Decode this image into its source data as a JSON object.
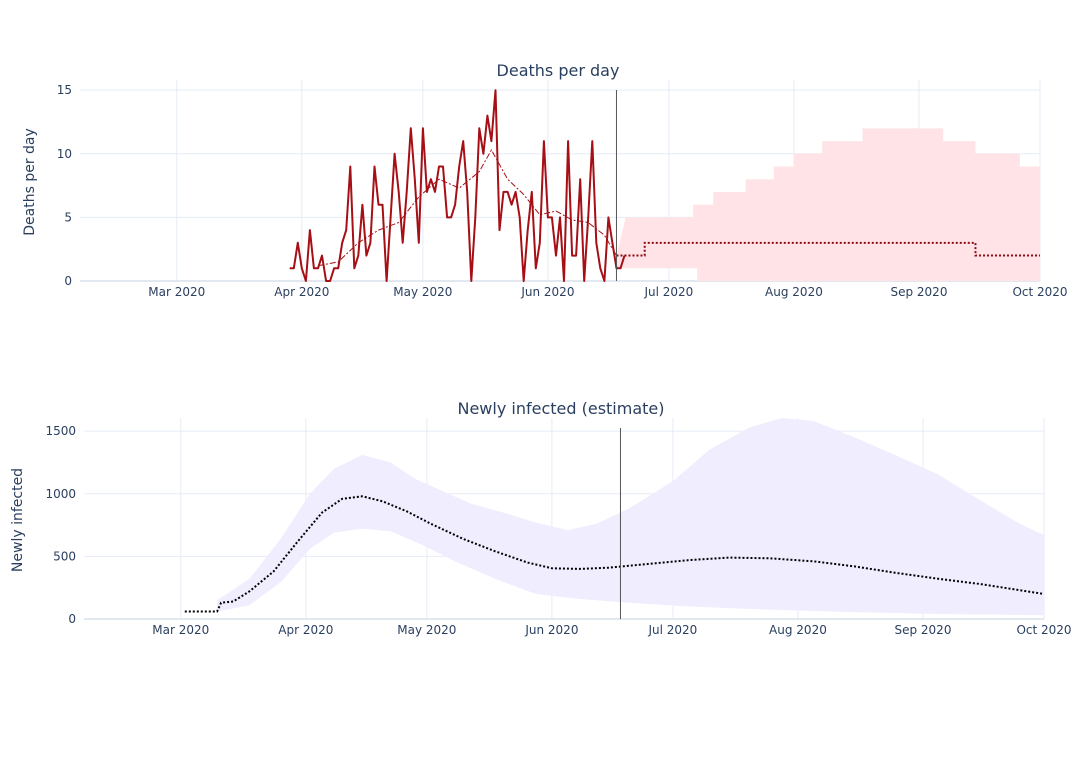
{
  "chart_data": [
    {
      "type": "line",
      "title": "Deaths per day",
      "ylabel": "Deaths per day",
      "xlabel": "",
      "x_range": [
        "2020-02-06",
        "2020-10-01"
      ],
      "ylim": [
        0,
        15.8
      ],
      "y_ticks": [
        0,
        5,
        10,
        15
      ],
      "x_ticks": [
        {
          "date": "2020-03-01",
          "label": "Mar 2020"
        },
        {
          "date": "2020-04-01",
          "label": "Apr 2020"
        },
        {
          "date": "2020-05-01",
          "label": "May 2020"
        },
        {
          "date": "2020-06-01",
          "label": "Jun 2020"
        },
        {
          "date": "2020-07-01",
          "label": "Jul 2020"
        },
        {
          "date": "2020-08-01",
          "label": "Aug 2020"
        },
        {
          "date": "2020-09-01",
          "label": "Sep 2020"
        },
        {
          "date": "2020-10-01",
          "label": "Oct 2020"
        }
      ],
      "vline_date": "2020-06-18",
      "grid": true,
      "colors": {
        "observed": "#a50f15",
        "band": "#ffe3e6",
        "grid": "#e5ecf6"
      },
      "observed": {
        "start_date": "2020-03-29",
        "values": [
          1,
          1,
          3,
          1,
          0,
          4,
          1,
          1,
          2,
          0,
          0,
          1,
          1,
          3,
          4,
          9,
          1,
          2,
          6,
          2,
          3,
          9,
          6,
          6,
          0,
          5,
          10,
          7,
          3,
          7,
          12,
          8,
          3,
          12,
          7,
          8,
          7,
          9,
          9,
          5,
          5,
          6,
          9,
          11,
          7,
          0,
          5,
          12,
          10,
          13,
          11,
          15,
          4,
          7,
          7,
          6,
          7,
          5,
          0,
          4,
          7,
          1,
          3,
          11,
          5,
          5,
          2,
          5,
          0,
          11,
          2,
          2,
          8,
          0,
          5,
          11,
          3,
          1,
          0,
          5,
          3,
          1,
          1,
          2
        ]
      },
      "rolling_avg": {
        "points": [
          [
            "2020-04-05",
            1.2
          ],
          [
            "2020-04-10",
            1.5
          ],
          [
            "2020-04-15",
            3.0
          ],
          [
            "2020-04-20",
            4.0
          ],
          [
            "2020-04-25",
            4.6
          ],
          [
            "2020-04-30",
            6.6
          ],
          [
            "2020-05-05",
            8.0
          ],
          [
            "2020-05-10",
            7.3
          ],
          [
            "2020-05-15",
            8.6
          ],
          [
            "2020-05-18",
            10.3
          ],
          [
            "2020-05-22",
            8.0
          ],
          [
            "2020-05-26",
            6.8
          ],
          [
            "2020-05-30",
            5.2
          ],
          [
            "2020-06-03",
            5.5
          ],
          [
            "2020-06-07",
            4.8
          ],
          [
            "2020-06-11",
            4.6
          ],
          [
            "2020-06-15",
            3.6
          ],
          [
            "2020-06-18",
            2.0
          ]
        ]
      },
      "forecast": {
        "steps": [
          [
            "2020-06-18",
            2
          ],
          [
            "2020-06-25",
            3
          ],
          [
            "2020-09-15",
            2
          ],
          [
            "2020-10-01",
            2
          ]
        ]
      },
      "band": {
        "upper_steps": [
          [
            "2020-06-21",
            5
          ],
          [
            "2020-07-07",
            6
          ],
          [
            "2020-07-12",
            7
          ],
          [
            "2020-07-20",
            8
          ],
          [
            "2020-07-27",
            9
          ],
          [
            "2020-08-01",
            10
          ],
          [
            "2020-08-08",
            11
          ],
          [
            "2020-08-18",
            12
          ],
          [
            "2020-09-07",
            11
          ],
          [
            "2020-09-15",
            10
          ],
          [
            "2020-09-26",
            9
          ],
          [
            "2020-10-01",
            8
          ]
        ],
        "lower_steps": [
          [
            "2020-06-18",
            1
          ],
          [
            "2020-07-08",
            0
          ],
          [
            "2020-10-01",
            0
          ]
        ]
      }
    },
    {
      "type": "line",
      "title": "Newly infected (estimate)",
      "ylabel": "Newly infected",
      "xlabel": "",
      "x_range": [
        "2020-02-06",
        "2020-10-01"
      ],
      "ylim": [
        0,
        1605
      ],
      "y_ticks": [
        0,
        500,
        1000,
        1500
      ],
      "x_ticks": [
        {
          "date": "2020-03-01",
          "label": "Mar 2020"
        },
        {
          "date": "2020-04-01",
          "label": "Apr 2020"
        },
        {
          "date": "2020-05-01",
          "label": "May 2020"
        },
        {
          "date": "2020-06-01",
          "label": "Jun 2020"
        },
        {
          "date": "2020-07-01",
          "label": "Jul 2020"
        },
        {
          "date": "2020-08-01",
          "label": "Aug 2020"
        },
        {
          "date": "2020-09-01",
          "label": "Sep 2020"
        },
        {
          "date": "2020-10-01",
          "label": "Oct 2020"
        }
      ],
      "vline_date": "2020-06-18",
      "grid": true,
      "colors": {
        "estimate": "#000000",
        "band": "#efedfe",
        "grid": "#e5ecf6"
      },
      "estimate": {
        "points": [
          [
            "2020-03-02",
            60
          ],
          [
            "2020-03-10",
            60
          ],
          [
            "2020-03-11",
            130
          ],
          [
            "2020-03-14",
            140
          ],
          [
            "2020-03-18",
            220
          ],
          [
            "2020-03-24",
            380
          ],
          [
            "2020-03-30",
            620
          ],
          [
            "2020-04-05",
            850
          ],
          [
            "2020-04-10",
            960
          ],
          [
            "2020-04-15",
            980
          ],
          [
            "2020-04-20",
            940
          ],
          [
            "2020-04-26",
            860
          ],
          [
            "2020-05-02",
            760
          ],
          [
            "2020-05-10",
            640
          ],
          [
            "2020-05-18",
            540
          ],
          [
            "2020-05-26",
            450
          ],
          [
            "2020-06-01",
            405
          ],
          [
            "2020-06-08",
            400
          ],
          [
            "2020-06-15",
            410
          ],
          [
            "2020-06-25",
            440
          ],
          [
            "2020-07-05",
            470
          ],
          [
            "2020-07-15",
            490
          ],
          [
            "2020-07-25",
            485
          ],
          [
            "2020-08-05",
            460
          ],
          [
            "2020-08-15",
            420
          ],
          [
            "2020-08-25",
            370
          ],
          [
            "2020-09-05",
            320
          ],
          [
            "2020-09-15",
            280
          ],
          [
            "2020-09-25",
            230
          ],
          [
            "2020-10-01",
            200
          ]
        ]
      },
      "band": {
        "upper": [
          [
            "2020-03-10",
            150
          ],
          [
            "2020-03-18",
            320
          ],
          [
            "2020-03-26",
            650
          ],
          [
            "2020-04-02",
            1000
          ],
          [
            "2020-04-08",
            1200
          ],
          [
            "2020-04-15",
            1310
          ],
          [
            "2020-04-22",
            1250
          ],
          [
            "2020-04-28",
            1120
          ],
          [
            "2020-05-05",
            1020
          ],
          [
            "2020-05-12",
            920
          ],
          [
            "2020-05-20",
            850
          ],
          [
            "2020-05-28",
            770
          ],
          [
            "2020-06-05",
            710
          ],
          [
            "2020-06-12",
            760
          ],
          [
            "2020-06-20",
            880
          ],
          [
            "2020-07-01",
            1100
          ],
          [
            "2020-07-10",
            1350
          ],
          [
            "2020-07-20",
            1530
          ],
          [
            "2020-07-28",
            1605
          ],
          [
            "2020-08-05",
            1580
          ],
          [
            "2020-08-15",
            1450
          ],
          [
            "2020-08-25",
            1310
          ],
          [
            "2020-09-05",
            1150
          ],
          [
            "2020-09-15",
            950
          ],
          [
            "2020-09-25",
            760
          ],
          [
            "2020-10-01",
            670
          ]
        ],
        "lower": [
          [
            "2020-03-10",
            60
          ],
          [
            "2020-03-18",
            110
          ],
          [
            "2020-03-26",
            300
          ],
          [
            "2020-04-02",
            560
          ],
          [
            "2020-04-08",
            690
          ],
          [
            "2020-04-15",
            720
          ],
          [
            "2020-04-22",
            700
          ],
          [
            "2020-04-30",
            590
          ],
          [
            "2020-05-08",
            460
          ],
          [
            "2020-05-18",
            320
          ],
          [
            "2020-05-28",
            200
          ],
          [
            "2020-06-08",
            160
          ],
          [
            "2020-06-20",
            130
          ],
          [
            "2020-07-05",
            100
          ],
          [
            "2020-07-25",
            75
          ],
          [
            "2020-08-15",
            55
          ],
          [
            "2020-09-05",
            40
          ],
          [
            "2020-10-01",
            30
          ]
        ]
      }
    }
  ]
}
